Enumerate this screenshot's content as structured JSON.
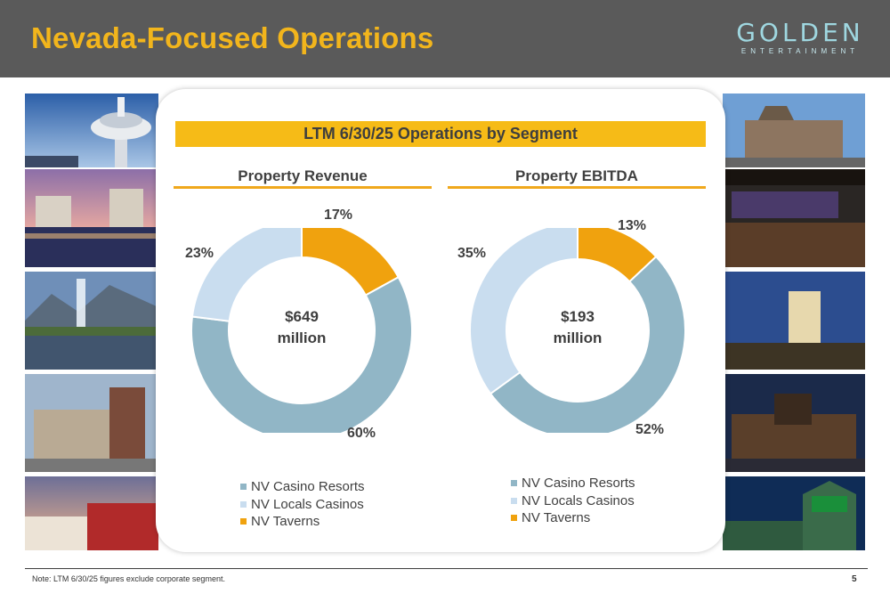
{
  "header": {
    "title": "Nevada-Focused Operations"
  },
  "logo": {
    "word": "GOLDEN",
    "subword": "ENTERTAINMENT"
  },
  "banner": {
    "title": "LTM 6/30/25 Operations by Segment"
  },
  "colors": {
    "header_bg": "#5a5a5a",
    "title": "#f2b51c",
    "casino_resorts": "#91b6c6",
    "locals_casinos": "#c9ddef",
    "taverns": "#f0a20e",
    "accent": "#f6bb17"
  },
  "chart_data": [
    {
      "type": "pie",
      "title": "Property Revenue",
      "center_text": [
        "$649",
        "million"
      ],
      "categories": [
        "NV Casino Resorts",
        "NV Locals Casinos",
        "NV Taverns"
      ],
      "values": [
        60,
        23,
        17
      ],
      "value_labels": [
        "60%",
        "23%",
        "17%"
      ],
      "legend": [
        "NV Casino Resorts",
        "NV Locals Casinos",
        "NV Taverns"
      ],
      "legend_position": "bottom"
    },
    {
      "type": "pie",
      "title": "Property EBITDA",
      "center_text": [
        "$193",
        "million"
      ],
      "categories": [
        "NV Casino Resorts",
        "NV Locals Casinos",
        "NV Taverns"
      ],
      "values": [
        52,
        35,
        13
      ],
      "value_labels": [
        "52%",
        "35%",
        "13%"
      ],
      "legend": [
        "NV Casino Resorts",
        "NV Locals Casinos",
        "NV Taverns"
      ],
      "legend_position": "bottom"
    }
  ],
  "footer": {
    "note": "Note: LTM 6/30/25 figures exclude corporate segment.",
    "page": "5"
  }
}
